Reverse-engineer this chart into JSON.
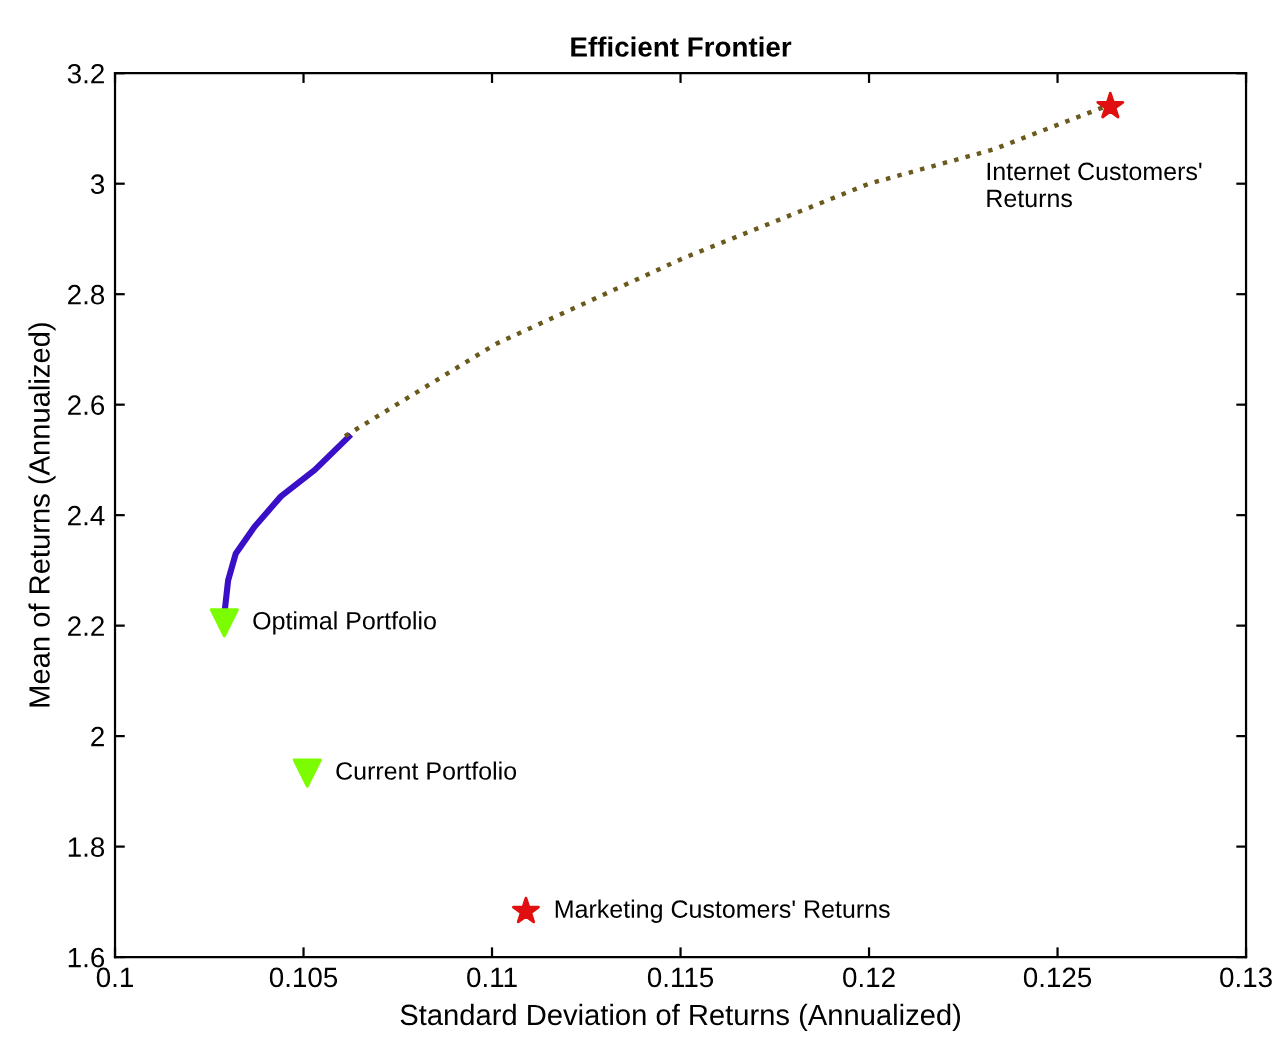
{
  "chart_data": {
    "type": "line",
    "title": "Efficient Frontier",
    "xlabel": "Standard Deviation of Returns (Annualized)",
    "ylabel": "Mean of Returns (Annualized)",
    "xlim": [
      0.1,
      0.13
    ],
    "xticks": [
      0.1,
      0.105,
      0.11,
      0.115,
      0.12,
      0.125,
      0.13
    ],
    "ylim": [
      1.6,
      3.2
    ],
    "yticks": [
      1.6,
      1.8,
      2,
      2.2,
      2.4,
      2.6,
      2.8,
      3,
      3.2
    ],
    "grid": false,
    "series": [
      {
        "color": "#3a0fc8",
        "line_style": "solid",
        "marker": "none",
        "x": [
          0.1029,
          0.103,
          0.1032,
          0.1037,
          0.1044,
          0.1053,
          0.1062
        ],
        "values": [
          2.221,
          2.282,
          2.33,
          2.379,
          2.434,
          2.482,
          2.542
        ]
      },
      {
        "color": "#6b5a1e",
        "line_style": "dotted",
        "marker": "none",
        "x": [
          0.1061,
          0.1101,
          0.1151,
          0.12,
          0.1233,
          0.1262
        ],
        "values": [
          2.543,
          2.71,
          2.866,
          3.0,
          3.062,
          3.138
        ]
      },
      {
        "type": "scatter",
        "color": "#7cfc00",
        "marker": "triangle",
        "x": [
          0.1029,
          0.1051
        ],
        "values": [
          2.205,
          1.933
        ]
      },
      {
        "type": "scatter",
        "color": "#e01010",
        "marker": "star",
        "x": [
          0.1264,
          0.1109
        ],
        "values": [
          3.14,
          1.683
        ]
      }
    ],
    "annotations": [
      {
        "text": "Internet Customers'\nReturns",
        "x": 0.1264,
        "y": 3.14
      },
      {
        "text": "Optimal Portfolio",
        "x": 0.1029,
        "y": 2.205
      },
      {
        "text": "Current Portfolio",
        "x": 0.1051,
        "y": 1.933
      },
      {
        "text": "Marketing Customers' Returns",
        "x": 0.1109,
        "y": 1.683
      }
    ]
  }
}
